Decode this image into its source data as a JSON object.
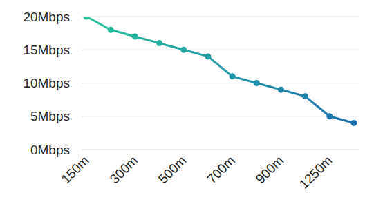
{
  "chart_data": {
    "type": "line",
    "categories": [
      "150m",
      null,
      "300m",
      null,
      "500m",
      null,
      "700m",
      null,
      "900m",
      null,
      "1250m",
      null
    ],
    "series": [
      {
        "values": [
          20,
          18,
          17,
          16,
          15,
          14,
          11,
          10,
          9,
          8,
          5,
          4
        ],
        "colors": [
          "#29c29a",
          "#28ba9c",
          "#26b39e",
          "#25ab9f",
          "#24a4a1",
          "#229ca3",
          "#2195a5",
          "#1f8da7",
          "#1e85a9",
          "#1d7eaa",
          "#1b76ac",
          "#1a6fae"
        ],
        "marker": "circle"
      }
    ],
    "ylim": [
      0,
      20
    ],
    "yticks": [
      {
        "value": 0,
        "label": "0Mbps"
      },
      {
        "value": 5,
        "label": "5Mbps"
      },
      {
        "value": 10,
        "label": "10Mbps"
      },
      {
        "value": 15,
        "label": "15Mbps"
      },
      {
        "value": 20,
        "label": "20Mbps"
      }
    ],
    "grid": true
  }
}
